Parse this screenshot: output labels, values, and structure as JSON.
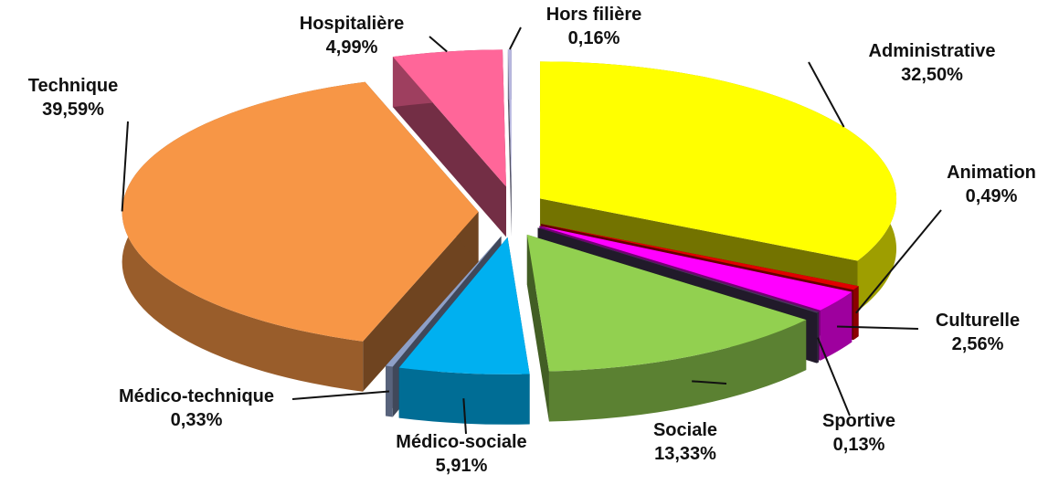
{
  "chart_data": {
    "type": "pie3d",
    "categories": [
      "Administrative",
      "Animation",
      "Culturelle",
      "Sportive",
      "Sociale",
      "Médico-sociale",
      "Médico-technique",
      "Technique",
      "Hospitalière",
      "Hors filière"
    ],
    "values": [
      32.5,
      0.49,
      2.56,
      0.13,
      13.33,
      5.91,
      0.33,
      39.59,
      4.99,
      0.16
    ],
    "value_labels": [
      "32,50%",
      "0,49%",
      "2,56%",
      "0,13%",
      "13,33%",
      "5,91%",
      "0,33%",
      "39,59%",
      "4,99%",
      "0,16%"
    ],
    "colors": [
      "#ffff00",
      "#e00000",
      "#ff00ff",
      "#4a3a5e",
      "#92d050",
      "#00b0f0",
      "#8ea0c8",
      "#f79646",
      "#ff6699",
      "#b8b8e0"
    ]
  }
}
